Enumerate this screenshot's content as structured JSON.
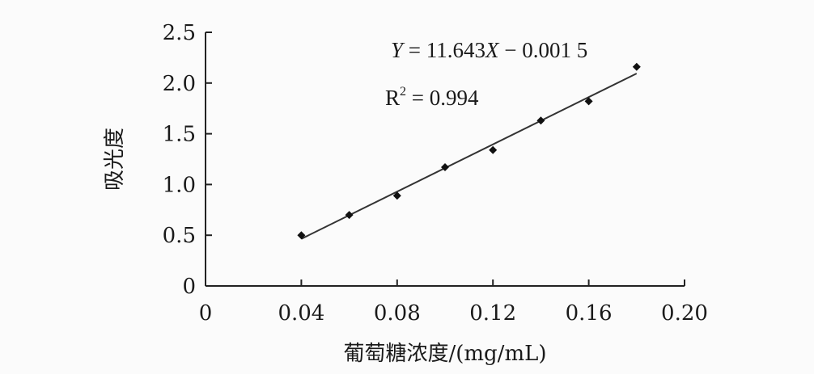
{
  "chart_data": {
    "type": "scatter",
    "x_ticks": [
      "0",
      "0.04",
      "0.08",
      "0.12",
      "0.16",
      "0.20"
    ],
    "y_ticks": [
      "0",
      "0.5",
      "1.0",
      "1.5",
      "2.0",
      "2.5"
    ],
    "xlim": [
      0,
      0.2
    ],
    "ylim": [
      0,
      2.5
    ],
    "xlabel": "葡萄糖浓度/(mg/mL)",
    "ylabel": "吸光度",
    "points": [
      {
        "x": 0.04,
        "y": 0.5
      },
      {
        "x": 0.06,
        "y": 0.7
      },
      {
        "x": 0.08,
        "y": 0.89
      },
      {
        "x": 0.1,
        "y": 1.17
      },
      {
        "x": 0.12,
        "y": 1.34
      },
      {
        "x": 0.14,
        "y": 1.63
      },
      {
        "x": 0.16,
        "y": 1.82
      },
      {
        "x": 0.18,
        "y": 2.16
      }
    ],
    "trendline": {
      "x_range": [
        0.04,
        0.18
      ],
      "slope": 11.643,
      "intercept": -0.0015,
      "equation": {
        "y_var": "Y",
        "middle": " = 11.643",
        "x_var": "X",
        "tail": " − 0.001 5"
      },
      "r2": {
        "base": "R",
        "sup": "2",
        "rest": " = 0.994"
      }
    },
    "grid": false,
    "legend": "none"
  }
}
